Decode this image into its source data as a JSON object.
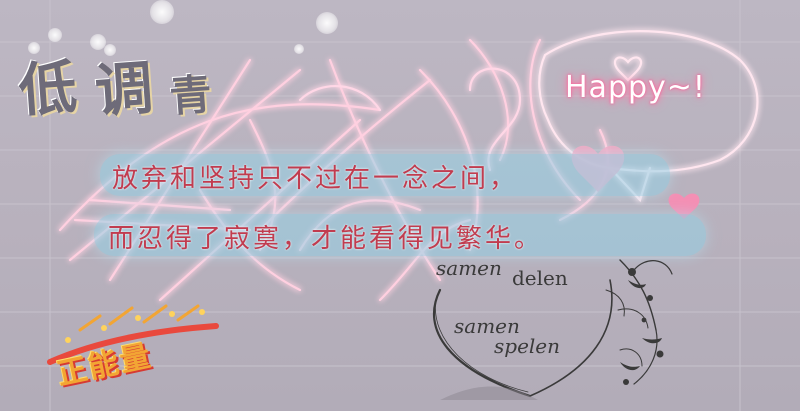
{
  "stamp": {
    "chars": [
      "低",
      "调",
      "青"
    ]
  },
  "bubble": {
    "text": "Happy~!"
  },
  "message": {
    "line1": "放弃和坚持只不过在一念之间，",
    "line2": "而忍得了寂寞，才能看得见繁华。"
  },
  "ornament": {
    "phrase1_a": "samen",
    "phrase1_b": "delen",
    "phrase2_a": "samen",
    "phrase2_b": "spelen"
  },
  "sticker": {
    "text": "正能量"
  },
  "colors": {
    "background": "#b8b1bd",
    "neon_pink": "#ff6fa0",
    "message_text": "#c13c4f",
    "band_blue": "#96d2e6",
    "stamp_gray": "#6e6b79",
    "sticker_orange": "#f2a534"
  }
}
